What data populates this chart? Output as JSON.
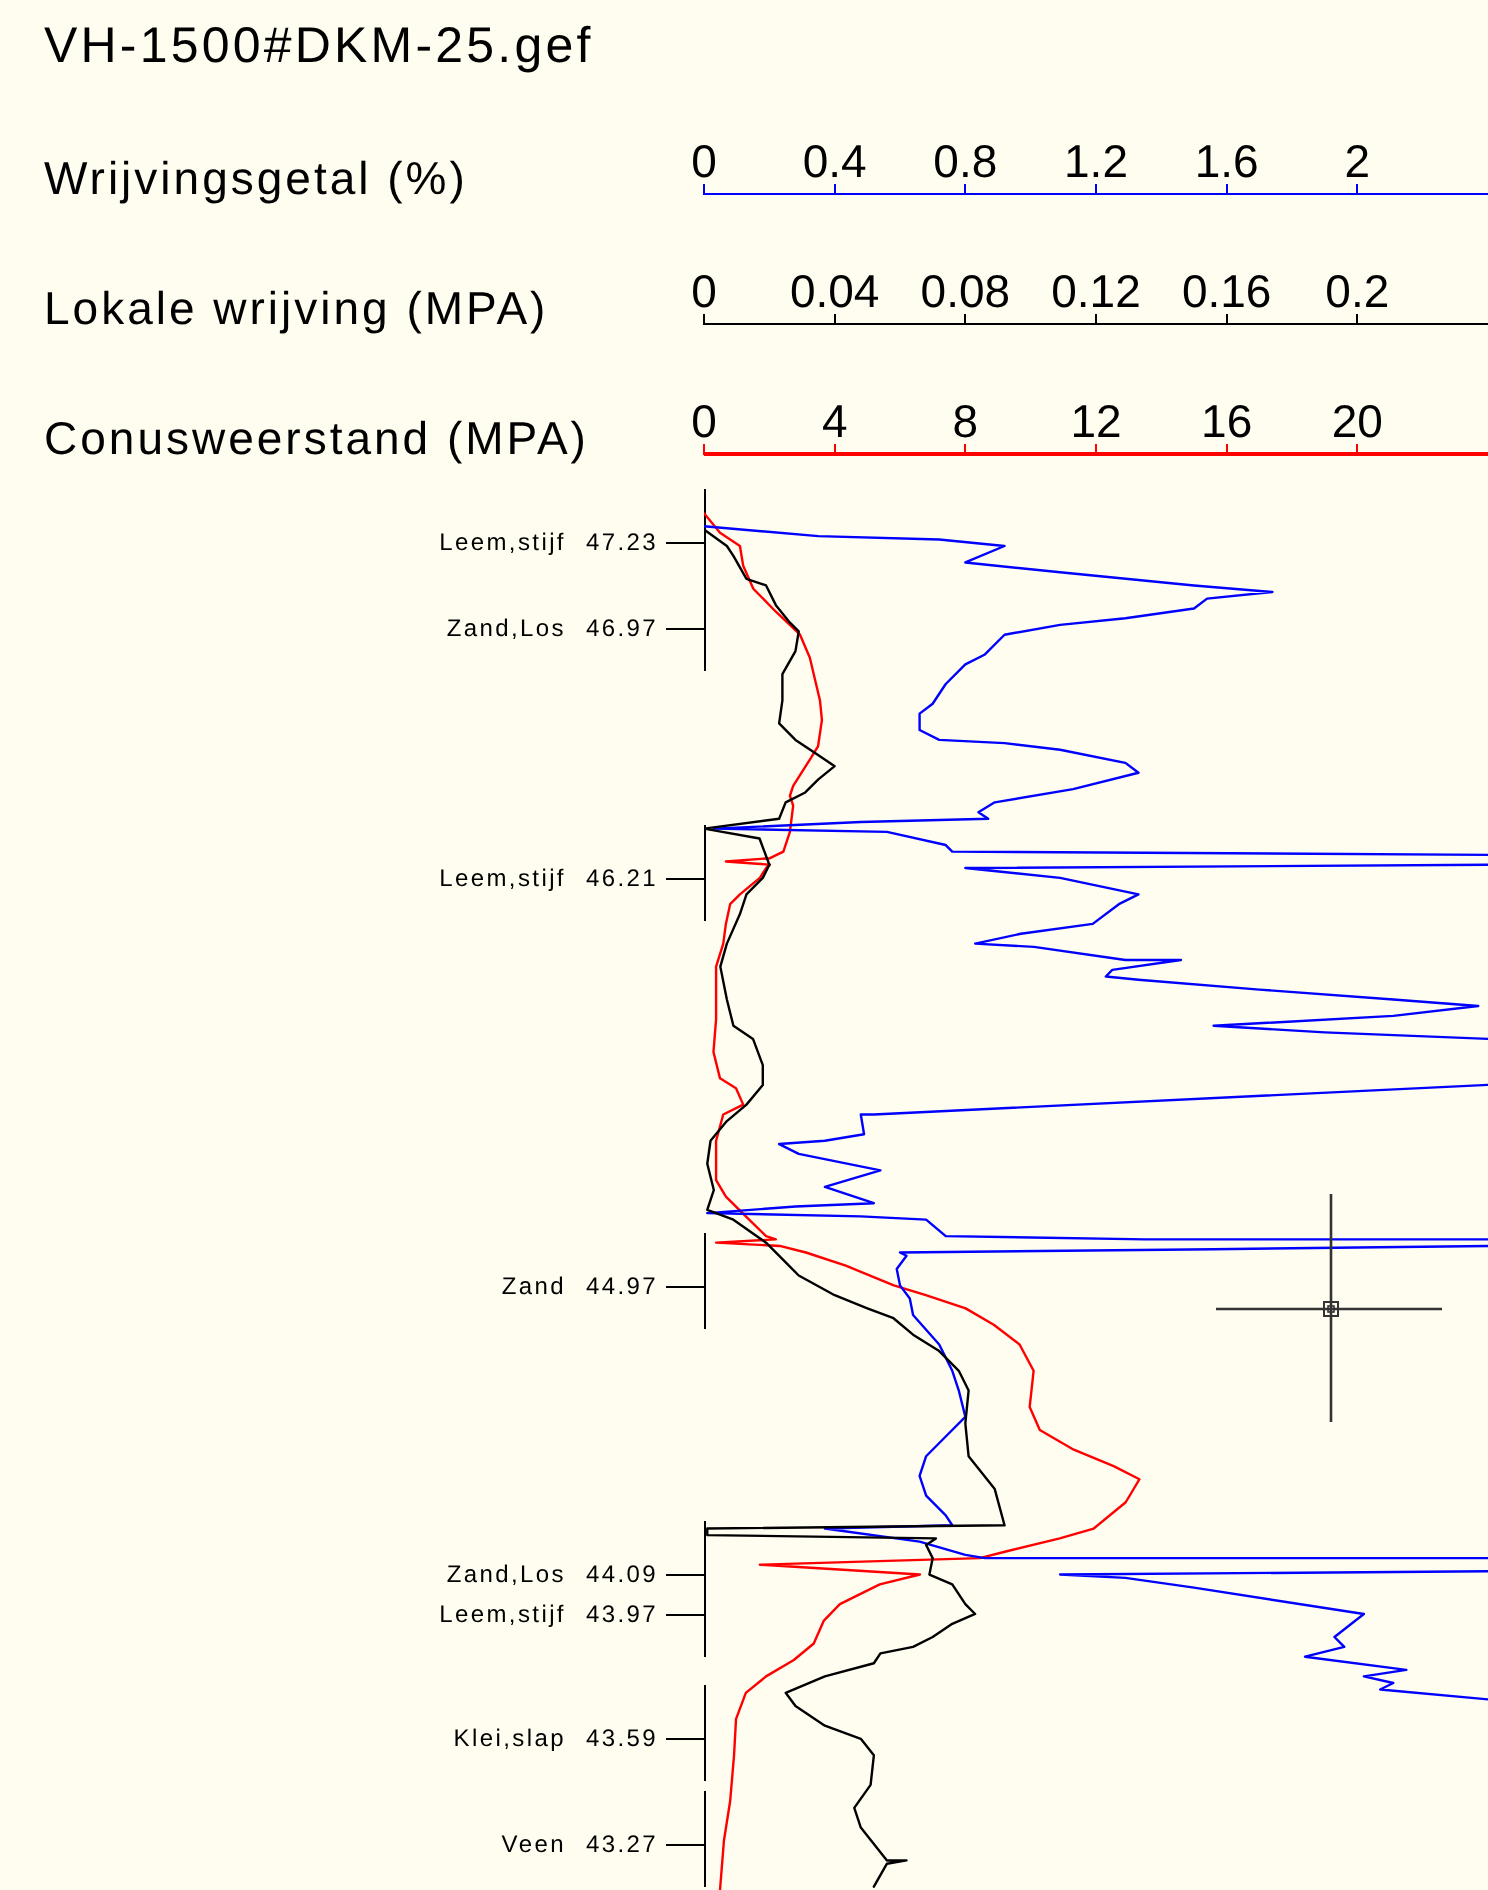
{
  "chart_data": [
    {
      "type": "line",
      "title": "VH-1500#DKM-25.gef",
      "xlabel": "Wrijvingsgetal (%)",
      "xlim": [
        0,
        2.4
      ],
      "xticks": [
        0,
        0.4,
        0.8,
        1.2,
        1.6,
        2
      ],
      "ylim": [
        43.13,
        47.5
      ],
      "tick_labels": "x",
      "series": [
        {
          "color": "#0000ff",
          "x": [
            0,
            0.35,
            0.72,
            0.92,
            0.8,
            1.09,
            1.5,
            1.74,
            1.54,
            1.5,
            1.29,
            1.09,
            0.92,
            0.86,
            0.8,
            0.74,
            0.7,
            0.66,
            0.66,
            0.72,
            0.92,
            1.09,
            1.29,
            1.33,
            1.13,
            0.89,
            0.84,
            0.87,
            0.48,
            0.03,
            0.56,
            0.74,
            0.76,
            2.4,
            null,
            2.4,
            0.8,
            1.09,
            1.33,
            1.27,
            1.19,
            0.97,
            0.83,
            1.01,
            1.29,
            1.46,
            1.25,
            1.23,
            1.33,
            1.7,
            2.11,
            2.37,
            2.11,
            1.56,
            1.9,
            2.4,
            null,
            2.4,
            0.52,
            0.48,
            0.49,
            0.37,
            0.23,
            0.29,
            0.54,
            0.37,
            0.52,
            0.28,
            0.01,
            0.48,
            0.68,
            0.74,
            1.35,
            2.4,
            null,
            2.4,
            1.56,
            0.6,
            0.62,
            0.59,
            0.6,
            0.63,
            0.64,
            0.72,
            0.76,
            0.78,
            0.8,
            0.74,
            0.68,
            0.66,
            0.68,
            0.74,
            0.76,
            0.37,
            0.66,
            0.8,
            0.86,
            2.4,
            null,
            2.4,
            1.09,
            1.29,
            1.5,
            2.02,
            1.93,
            1.96,
            1.84,
            2.15,
            2.02,
            2.11,
            2.07,
            2.4
          ],
          "values": [
            47.28,
            47.25,
            47.24,
            47.22,
            47.17,
            47.14,
            47.1,
            47.08,
            47.06,
            47.03,
            47.0,
            46.98,
            46.95,
            46.89,
            46.86,
            46.8,
            46.74,
            46.71,
            46.66,
            46.63,
            46.62,
            46.6,
            46.56,
            46.53,
            46.48,
            46.44,
            46.41,
            46.39,
            46.38,
            46.36,
            46.35,
            46.31,
            46.29,
            46.28,
            null,
            46.25,
            46.24,
            46.21,
            46.16,
            46.13,
            46.07,
            46.04,
            46.01,
            46.0,
            45.96,
            45.96,
            45.93,
            45.91,
            45.9,
            45.87,
            45.84,
            45.82,
            45.79,
            45.76,
            45.74,
            45.72,
            null,
            45.58,
            45.49,
            45.49,
            45.43,
            45.41,
            45.4,
            45.37,
            45.32,
            45.27,
            45.22,
            45.21,
            45.19,
            45.18,
            45.17,
            45.12,
            45.11,
            45.11,
            null,
            45.09,
            45.08,
            45.07,
            45.06,
            45.02,
            44.97,
            44.93,
            44.88,
            44.79,
            44.71,
            44.65,
            44.57,
            44.51,
            44.45,
            44.39,
            44.33,
            44.27,
            44.24,
            44.23,
            44.19,
            44.15,
            44.14,
            44.14,
            null,
            44.1,
            44.09,
            44.08,
            44.05,
            43.97,
            43.9,
            43.87,
            43.84,
            43.8,
            43.78,
            43.76,
            43.74,
            43.71
          ]
        }
      ]
    },
    {
      "type": "line",
      "xlabel": "Lokale wrijving (MPA)",
      "xlim": [
        0,
        0.24
      ],
      "xticks": [
        0,
        0.04,
        0.08,
        0.12,
        0.16,
        0.2
      ],
      "ylim": [
        43.13,
        47.5
      ],
      "tick_labels": "x",
      "series": [
        {
          "color": "#000000",
          "x": [
            0,
            0.007,
            0.009,
            0.013,
            0.019,
            0.022,
            0.026,
            0.029,
            0.028,
            0.024,
            0.024,
            0.023,
            0.028,
            0.034,
            0.04,
            0.035,
            0.031,
            0.025,
            0.023,
            0,
            0.017,
            0.02,
            0.018,
            0.013,
            0.011,
            0.007,
            0.005,
            0.007,
            0.009,
            0.015,
            0.018,
            0.018,
            0.013,
            0.007,
            0.002,
            0.001,
            0.003,
            0.001,
            0.009,
            0.019,
            0.029,
            0.04,
            0.05,
            0.058,
            0.064,
            0.072,
            0.078,
            0.081,
            0.08,
            0.081,
            0.089,
            0.092,
            0.001,
            0.001,
            0.071,
            0.068,
            0.07,
            0.069,
            0.076,
            0.08,
            0.083,
            0.076,
            0.07,
            0.064,
            0.054,
            0.052,
            0.037,
            0.025,
            0.028,
            0.037,
            0.048,
            0.052,
            0.051,
            0.046,
            0.048,
            0.056,
            0.062,
            0.056,
            0.052
          ],
          "values": [
            47.27,
            47.22,
            47.19,
            47.12,
            47.1,
            47.04,
            46.99,
            46.96,
            46.9,
            46.83,
            46.75,
            46.68,
            46.63,
            46.59,
            46.55,
            46.51,
            46.47,
            46.44,
            46.39,
            46.36,
            46.33,
            46.25,
            46.21,
            46.16,
            46.1,
            46.01,
            45.94,
            45.84,
            45.76,
            45.72,
            45.64,
            45.58,
            45.52,
            45.47,
            45.41,
            45.34,
            45.26,
            45.2,
            45.17,
            45.1,
            45.0,
            44.94,
            44.9,
            44.87,
            44.82,
            44.77,
            44.71,
            44.65,
            44.55,
            44.45,
            44.35,
            44.24,
            44.23,
            44.21,
            44.2,
            44.18,
            44.14,
            44.09,
            44.06,
            44.0,
            43.97,
            43.94,
            43.9,
            43.87,
            43.85,
            43.82,
            43.78,
            43.73,
            43.69,
            43.63,
            43.59,
            43.54,
            43.45,
            43.38,
            43.32,
            43.22,
            43.22,
            43.21,
            43.14
          ]
        }
      ]
    },
    {
      "type": "line",
      "xlabel": "Conusweerstand (MPA)",
      "xlim": [
        0,
        24
      ],
      "xticks": [
        0,
        4,
        8,
        12,
        16,
        20
      ],
      "ylim": [
        43.13,
        47.5
      ],
      "yticks": [
        47.23,
        46.97,
        46.21,
        44.97,
        44.09,
        43.97,
        43.59,
        43.27
      ],
      "annotations": [
        "Leem,stijf",
        "Zand,Los",
        "Leem,stijf",
        "Zand",
        "Zand,Los",
        "Leem,stijf",
        "Klei,slap",
        "Veen"
      ],
      "series": [
        {
          "color": "#ff0000",
          "x": [
            0,
            0.49,
            1.1,
            1.2,
            1.51,
            2.2,
            2.94,
            3.24,
            3.55,
            3.61,
            3.49,
            3.24,
            2.73,
            2.63,
            2.73,
            2.63,
            2.43,
            2.02,
            0.67,
            2.02,
            1.9,
            1.71,
            1.1,
            0.8,
            0.67,
            0.59,
            0.37,
            0.37,
            0.29,
            0.49,
            0.98,
            1.2,
            0.59,
            0.37,
            0.37,
            0.67,
            1.28,
            1.9,
            2.2,
            0.37,
            2.32,
            3.12,
            4.34,
            5.81,
            6.79,
            8.01,
            8.87,
            9.66,
            10.09,
            9.97,
            10.28,
            11.32,
            12.54,
            13.33,
            12.91,
            11.93,
            10.89,
            9.24,
            8.44,
            1.71,
            6.61,
            5.38,
            4.16,
            3.67,
            3.36,
            2.75,
            1.9,
            1.28,
            0.98,
            0.92,
            0.8,
            0.61,
            0.49
          ],
          "values": [
            47.32,
            47.26,
            47.22,
            47.16,
            47.09,
            47.02,
            46.95,
            46.88,
            46.75,
            46.69,
            46.61,
            46.57,
            46.49,
            46.46,
            46.43,
            46.35,
            46.29,
            46.27,
            46.26,
            46.25,
            46.24,
            46.21,
            46.16,
            46.13,
            46.07,
            46.01,
            45.94,
            45.78,
            45.68,
            45.6,
            45.57,
            45.52,
            45.49,
            45.41,
            45.29,
            45.24,
            45.18,
            45.12,
            45.11,
            45.1,
            45.09,
            45.07,
            45.03,
            44.97,
            44.94,
            44.9,
            44.85,
            44.79,
            44.71,
            44.6,
            44.53,
            44.47,
            44.42,
            44.38,
            44.31,
            44.23,
            44.2,
            44.16,
            44.14,
            44.12,
            44.09,
            44.06,
            44.0,
            43.95,
            43.88,
            43.83,
            43.78,
            43.73,
            43.65,
            43.54,
            43.4,
            43.28,
            43.13
          ]
        }
      ]
    }
  ]
}
